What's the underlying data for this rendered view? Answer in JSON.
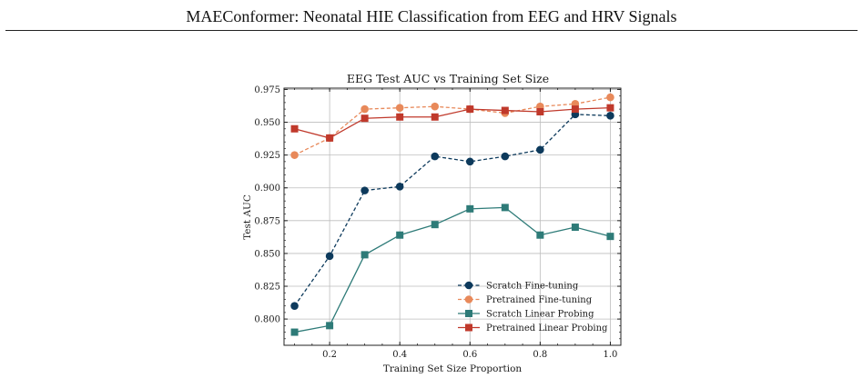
{
  "header": {
    "title": "MAEConformer: Neonatal HIE Classification from EEG and HRV Signals"
  },
  "chart_data": {
    "type": "line",
    "title": "EEG Test AUC vs Training Set Size",
    "xlabel": "Training Set Size Proportion",
    "ylabel": "Test AUC",
    "xlim": [
      0.07,
      1.03
    ],
    "ylim": [
      0.78,
      0.976
    ],
    "xticks": [
      0.2,
      0.4,
      0.6,
      0.8,
      1.0
    ],
    "xtick_labels": [
      "0.2",
      "0.4",
      "0.6",
      "0.8",
      "1.0"
    ],
    "yticks": [
      0.8,
      0.825,
      0.85,
      0.875,
      0.9,
      0.925,
      0.95,
      0.975
    ],
    "ytick_labels": [
      "0.800",
      "0.825",
      "0.850",
      "0.875",
      "0.900",
      "0.925",
      "0.950",
      "0.975"
    ],
    "grid": true,
    "legend_position": "lower-right",
    "x": [
      0.1,
      0.2,
      0.3,
      0.4,
      0.5,
      0.6,
      0.7,
      0.8,
      0.9,
      1.0
    ],
    "series": [
      {
        "name": "Scratch Fine-tuning",
        "color": "#0d3a5c",
        "dash": "dashed",
        "marker": "circle",
        "values": [
          0.81,
          0.848,
          0.898,
          0.901,
          0.924,
          0.92,
          0.924,
          0.929,
          0.956,
          0.955
        ]
      },
      {
        "name": "Pretrained Fine-tuning",
        "color": "#e8895a",
        "dash": "dashed",
        "marker": "circle",
        "values": [
          0.925,
          0.938,
          0.96,
          0.961,
          0.962,
          0.96,
          0.957,
          0.962,
          0.964,
          0.969
        ]
      },
      {
        "name": "Scratch Linear Probing",
        "color": "#2e7b78",
        "dash": "solid",
        "marker": "square",
        "values": [
          0.79,
          0.795,
          0.849,
          0.864,
          0.872,
          0.884,
          0.885,
          0.864,
          0.87,
          0.863
        ]
      },
      {
        "name": "Pretrained Linear Probing",
        "color": "#c0392b",
        "dash": "solid",
        "marker": "square",
        "values": [
          0.945,
          0.938,
          0.953,
          0.954,
          0.954,
          0.96,
          0.959,
          0.958,
          0.96,
          0.961
        ]
      }
    ]
  }
}
